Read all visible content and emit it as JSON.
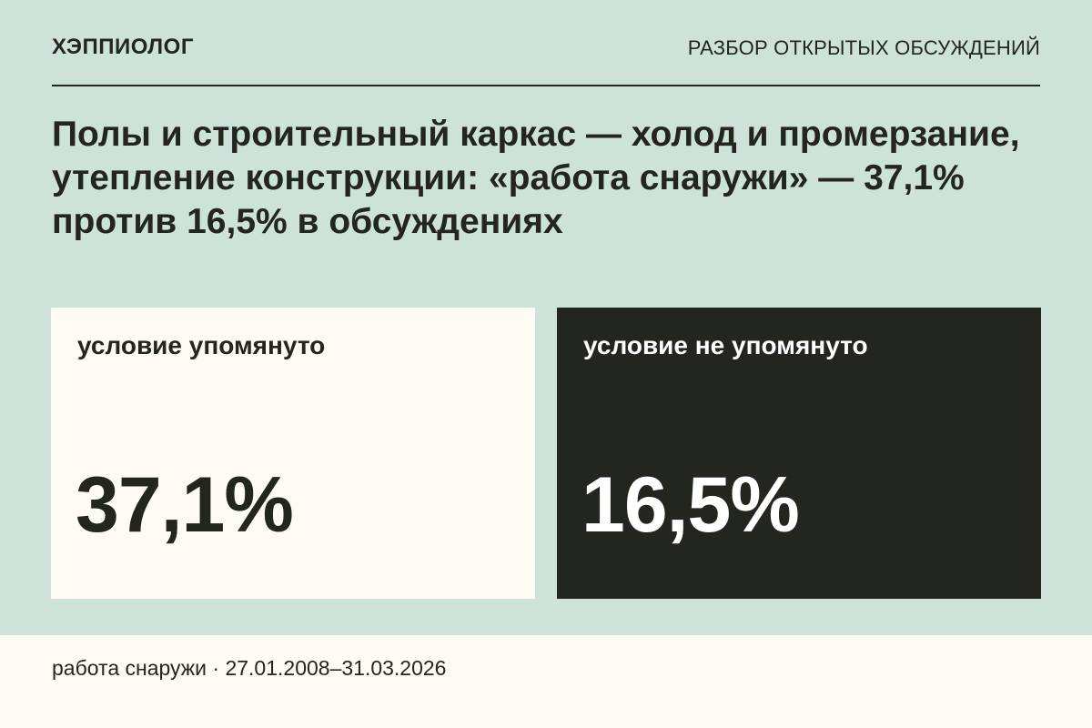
{
  "header": {
    "brand": "ХЭППИОЛОГ",
    "section": "РАЗБОР ОТКРЫТЫХ ОБСУЖДЕНИЙ"
  },
  "headline": "Полы и строительный каркас — холод и промерзание, утепление конструкции: «работа снаружи» — 37,1% против 16,5% в обсуждениях",
  "cards": [
    {
      "label": "условие упомянуто",
      "value": "37,1%"
    },
    {
      "label": "условие не упомянуто",
      "value": "16,5%"
    }
  ],
  "footer": {
    "text": "работа снаружи · 27.01.2008–31.03.2026"
  },
  "colors": {
    "background": "#cde3da",
    "light_card": "#fdfbf3",
    "dark_card": "#22261f",
    "text_dark": "#22261f",
    "text_light": "#ffffff"
  }
}
